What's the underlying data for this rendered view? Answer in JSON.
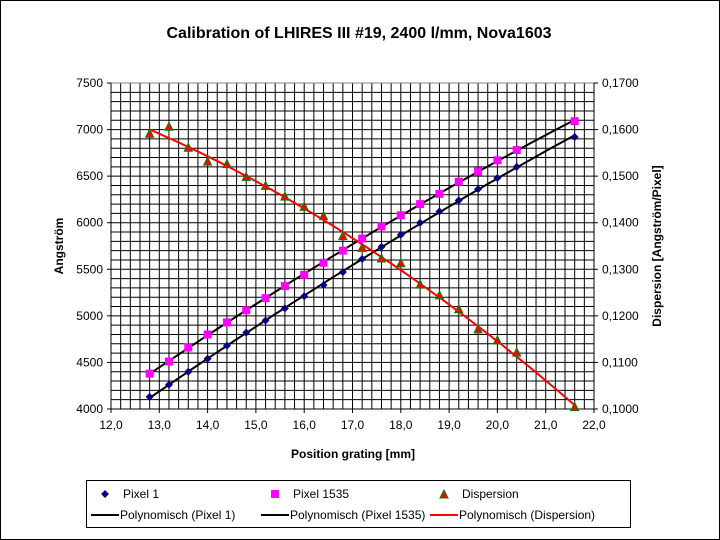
{
  "chart_data": {
    "type": "scatter",
    "title": "Calibration of LHIRES III  #19, 2400 l/mm, Nova1603",
    "xlabel": "Position grating [mm]",
    "ylabel": "Angström",
    "y2label": "Dispersion [Angström/Pixel]",
    "xlim": [
      12.0,
      22.0
    ],
    "ylim": [
      4000,
      7500
    ],
    "y2lim": [
      0.1,
      0.17
    ],
    "grid": true,
    "legend_position": "bottom",
    "xticks": [
      "12,0",
      "13,0",
      "14,0",
      "15,0",
      "16,0",
      "17,0",
      "18,0",
      "19,0",
      "20,0",
      "21,0",
      "22,0"
    ],
    "yticks": [
      "4000",
      "4500",
      "5000",
      "5500",
      "6000",
      "6500",
      "7000",
      "7500"
    ],
    "y2ticks": [
      "0,1000",
      "0,1100",
      "0,1200",
      "0,1300",
      "0,1400",
      "0,1500",
      "0,1600",
      "0,1700"
    ],
    "x": [
      12.8,
      13.2,
      13.6,
      14.0,
      14.4,
      14.8,
      15.2,
      15.6,
      16.0,
      16.4,
      16.8,
      17.2,
      17.6,
      18.0,
      18.4,
      18.8,
      19.2,
      19.6,
      20.0,
      20.4,
      21.6
    ],
    "series": [
      {
        "name": "Pixel 1",
        "axis": "left",
        "marker": "diamond",
        "color": "#000080",
        "values": [
          4130,
          4260,
          4400,
          4540,
          4680,
          4820,
          4950,
          5080,
          5210,
          5330,
          5470,
          5610,
          5740,
          5870,
          6000,
          6120,
          6240,
          6360,
          6480,
          6600,
          6920
        ]
      },
      {
        "name": "Pixel 1535",
        "axis": "left",
        "marker": "square",
        "color": "#FF00FF",
        "values": [
          4380,
          4510,
          4660,
          4800,
          4930,
          5060,
          5190,
          5320,
          5440,
          5570,
          5700,
          5830,
          5960,
          6080,
          6200,
          6310,
          6440,
          6550,
          6670,
          6780,
          7090
        ]
      },
      {
        "name": "Dispersion",
        "axis": "right",
        "marker": "triangle",
        "color": "#FF0000",
        "edge": "#008000",
        "values": [
          0.159,
          0.1605,
          0.156,
          0.153,
          0.1525,
          0.1497,
          0.1478,
          0.1455,
          0.1433,
          0.1413,
          0.137,
          0.1345,
          0.1322,
          0.1312,
          0.1266,
          0.1243,
          0.1213,
          0.117,
          0.1146,
          0.112,
          0.1003
        ]
      }
    ],
    "trendlines": [
      {
        "name": "Polynomisch (Pixel 1)",
        "of": 0,
        "color": "#000000"
      },
      {
        "name": "Polynomisch (Pixel 1535)",
        "of": 1,
        "color": "#000000"
      },
      {
        "name": "Polynomisch (Dispersion)",
        "of": 2,
        "color": "#FF0000"
      }
    ]
  }
}
